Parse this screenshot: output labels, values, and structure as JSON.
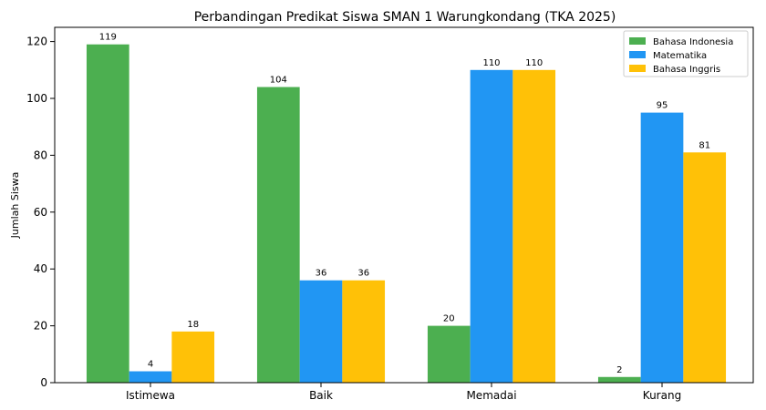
{
  "chart_data": {
    "type": "bar",
    "title": "Perbandingan Predikat Siswa SMAN 1 Warungkondang (TKA 2025)",
    "xlabel": "",
    "ylabel": "Jumlah Siswa",
    "categories": [
      "Istimewa",
      "Baik",
      "Memadai",
      "Kurang"
    ],
    "series": [
      {
        "name": "Bahasa Indonesia",
        "color": "#4caf50",
        "values": [
          119,
          104,
          20,
          2
        ]
      },
      {
        "name": "Matematika",
        "color": "#2196f3",
        "values": [
          4,
          36,
          110,
          95
        ]
      },
      {
        "name": "Bahasa Inggris",
        "color": "#ffc107",
        "values": [
          18,
          36,
          110,
          81
        ]
      }
    ],
    "ylim": [
      0,
      125
    ],
    "yticks": [
      0,
      20,
      40,
      60,
      80,
      100,
      120
    ],
    "grid": false,
    "legend": "top-right"
  }
}
